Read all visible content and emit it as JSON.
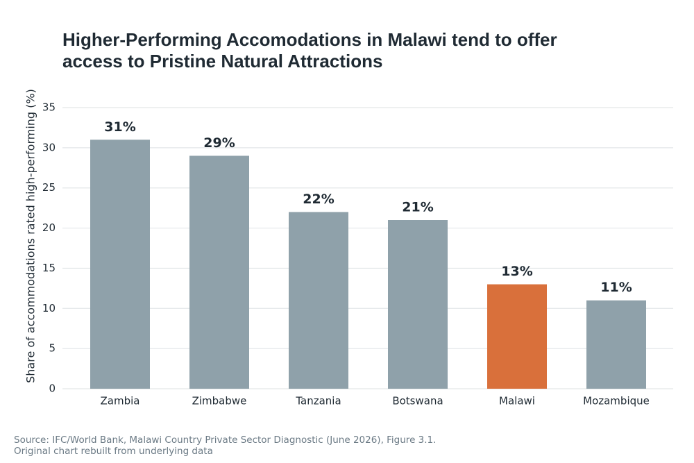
{
  "chart_data": {
    "type": "bar",
    "title": "Higher-Performing Accomodations in Malawi tend to offer access to Pristine Natural Attractions",
    "y_label": "Share of accommodations rated high-performing (%)",
    "categories": [
      "Zambia",
      "Zimbabwe",
      "Tanzania",
      "Botswana",
      "Malawi",
      "Mozambique"
    ],
    "values": [
      31,
      29,
      22,
      21,
      13,
      11
    ],
    "value_labels": [
      "31%",
      "29%",
      "22%",
      "21%",
      "13%",
      "11%"
    ],
    "colors": [
      "#8fa1aa",
      "#8fa1aa",
      "#8fa1aa",
      "#8fa1aa",
      "#d9703b",
      "#8fa1aa"
    ],
    "ylim": [
      0,
      35
    ],
    "yticks": [
      0,
      5,
      10,
      15,
      20,
      25,
      30,
      35
    ],
    "grid": true,
    "source": "Source: IFC/World Bank, Malawi Country Private Sector Diagnostic (June 2026), Figure 3.1.",
    "note": "Original chart rebuilt from underlying data"
  }
}
